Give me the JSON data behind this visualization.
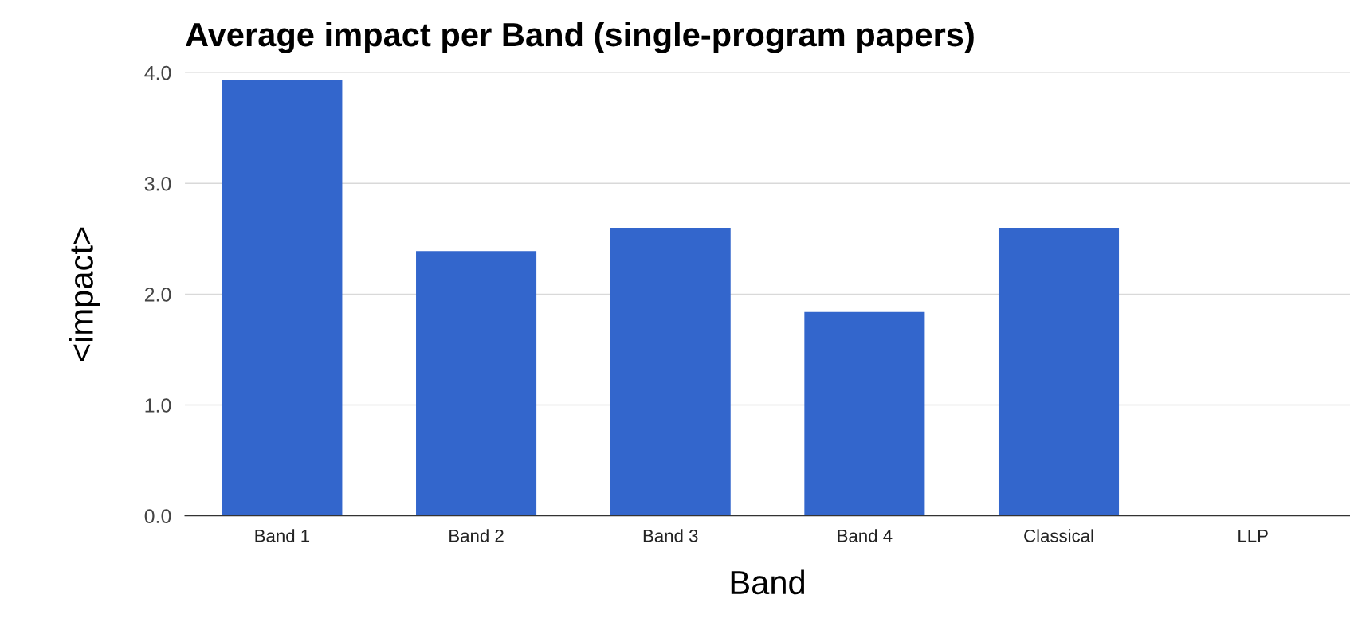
{
  "chart_data": {
    "type": "bar",
    "title": "Average impact per Band (single-program papers)",
    "xlabel": "Band",
    "ylabel": "<impact>",
    "categories": [
      "Band 1",
      "Band 2",
      "Band 3",
      "Band 4",
      "Classical",
      "LLP"
    ],
    "values": [
      3.93,
      2.39,
      2.6,
      1.84,
      2.6,
      null
    ],
    "color": "#3366cc",
    "ylim": [
      0,
      4.0
    ],
    "yticks": [
      {
        "value": 0,
        "label": "0.0"
      },
      {
        "value": 1,
        "label": "1.0"
      },
      {
        "value": 2,
        "label": "2.0"
      },
      {
        "value": 3,
        "label": "3.0"
      },
      {
        "value": 4,
        "label": "4.0"
      }
    ],
    "grid": "y",
    "legend": false
  }
}
